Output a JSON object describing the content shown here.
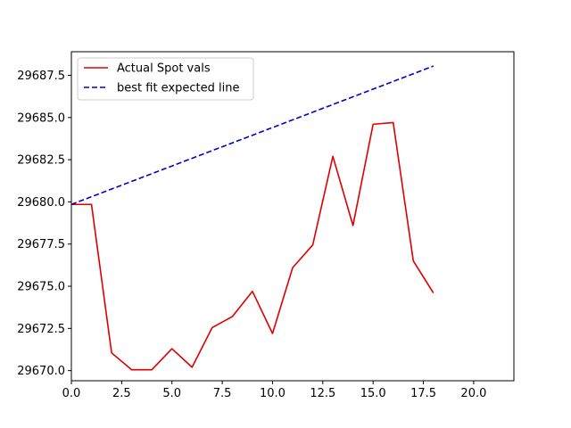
{
  "chart_data": {
    "type": "line",
    "title": "",
    "xlabel": "",
    "ylabel": "",
    "xlim": [
      0,
      22
    ],
    "ylim": [
      29669.4,
      29688.9
    ],
    "x_ticks": [
      0.0,
      2.5,
      5.0,
      7.5,
      10.0,
      12.5,
      15.0,
      17.5,
      20.0
    ],
    "x_tick_labels": [
      "0.0",
      "2.5",
      "5.0",
      "7.5",
      "10.0",
      "12.5",
      "15.0",
      "17.5",
      "20.0"
    ],
    "y_ticks": [
      29670.0,
      29672.5,
      29675.0,
      29677.5,
      29680.0,
      29682.5,
      29685.0,
      29687.5
    ],
    "y_tick_labels": [
      "29670.0",
      "29672.5",
      "29675.0",
      "29677.5",
      "29680.0",
      "29682.5",
      "29685.0",
      "29687.5"
    ],
    "grid": false,
    "legend_position": "upper-left",
    "series": [
      {
        "name": "Actual Spot vals",
        "color": "#dd0000",
        "style": "solid",
        "x": [
          0,
          1,
          2,
          3,
          4,
          5,
          6,
          7,
          8,
          9,
          10,
          11,
          12,
          13,
          14,
          15,
          16,
          17,
          18
        ],
        "y": [
          29679.85,
          29679.85,
          29671.05,
          29670.05,
          29670.05,
          29671.3,
          29670.2,
          29672.55,
          29673.2,
          29674.7,
          29672.2,
          29676.1,
          29677.45,
          29682.7,
          29678.6,
          29684.6,
          29684.7,
          29676.5,
          29674.6
        ]
      },
      {
        "name": "best fit expected line",
        "color": "#0000cc",
        "style": "dashed",
        "x": [
          0,
          18
        ],
        "y": [
          29679.85,
          29688.05
        ]
      }
    ]
  }
}
